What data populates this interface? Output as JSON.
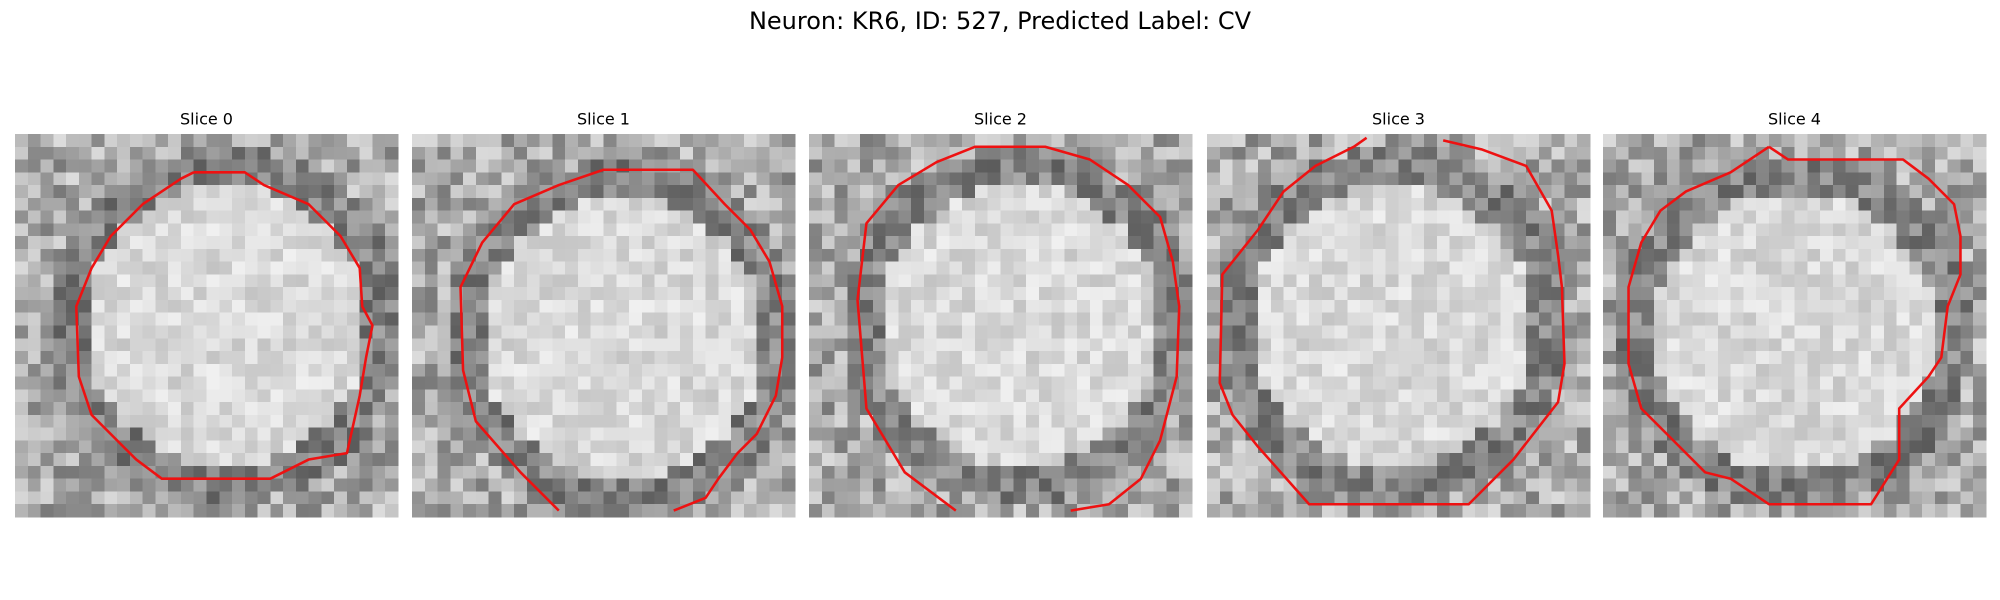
{
  "title": "Neuron: KR6, ID: 527, Predicted Label: CV",
  "panels": [
    {
      "title": "Slice 0"
    },
    {
      "title": "Slice 1"
    },
    {
      "title": "Slice 2"
    },
    {
      "title": "Slice 3"
    },
    {
      "title": "Slice 4"
    }
  ]
}
